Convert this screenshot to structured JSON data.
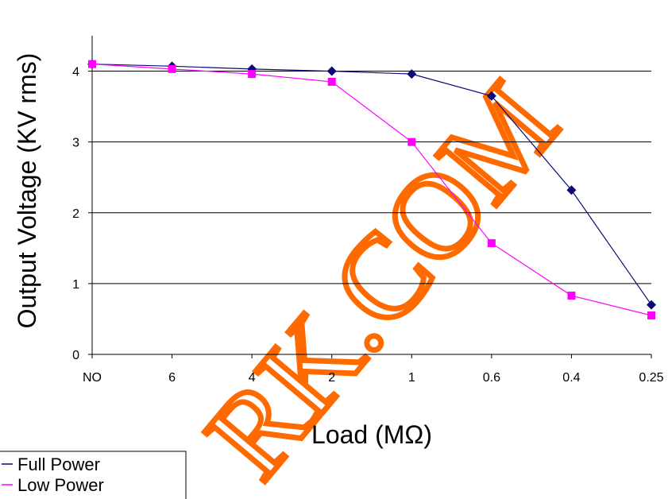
{
  "chart_data": {
    "type": "line",
    "categories": [
      "NO",
      "6",
      "4",
      "2",
      "1",
      "0.6",
      "0.4",
      "0.25"
    ],
    "series": [
      {
        "name": "Full Power",
        "color": "#0a0a78",
        "marker": "diamond",
        "values": [
          4.1,
          4.07,
          4.03,
          4.0,
          3.96,
          3.65,
          2.32,
          0.7
        ]
      },
      {
        "name": "Low Power",
        "color": "#ff00ff",
        "marker": "square",
        "values": [
          4.1,
          4.03,
          3.96,
          3.85,
          3.0,
          1.57,
          0.83,
          0.55
        ]
      }
    ],
    "xlabel": "Load (MΩ)",
    "ylabel": "Output Voltage (KV rms)",
    "ylim": [
      0,
      4.5
    ],
    "yticks": [
      0,
      1,
      2,
      3,
      4
    ],
    "grid": "horizontal",
    "legend": "bottom-left"
  },
  "watermark": "RK.COM"
}
